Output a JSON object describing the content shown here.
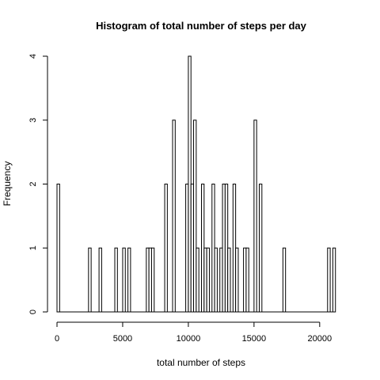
{
  "chart_data": {
    "type": "bar",
    "title": "Histogram of total number of steps per day",
    "xlabel": "total number of steps",
    "ylabel": "Frequency",
    "xlim": [
      0,
      22000
    ],
    "ylim": [
      0,
      4
    ],
    "xticks": [
      0,
      5000,
      10000,
      15000,
      20000
    ],
    "yticks": [
      0,
      1,
      2,
      3,
      4
    ],
    "bin_width": 200,
    "bins": [
      {
        "x": 0,
        "count": 2
      },
      {
        "x": 2400,
        "count": 1
      },
      {
        "x": 3200,
        "count": 1
      },
      {
        "x": 4400,
        "count": 1
      },
      {
        "x": 5000,
        "count": 1
      },
      {
        "x": 5400,
        "count": 1
      },
      {
        "x": 6800,
        "count": 1
      },
      {
        "x": 7000,
        "count": 1
      },
      {
        "x": 7200,
        "count": 1
      },
      {
        "x": 8200,
        "count": 2
      },
      {
        "x": 8800,
        "count": 3
      },
      {
        "x": 9800,
        "count": 2
      },
      {
        "x": 10000,
        "count": 4
      },
      {
        "x": 10200,
        "count": 2
      },
      {
        "x": 10400,
        "count": 3
      },
      {
        "x": 10600,
        "count": 1
      },
      {
        "x": 11000,
        "count": 2
      },
      {
        "x": 11200,
        "count": 1
      },
      {
        "x": 11400,
        "count": 1
      },
      {
        "x": 11800,
        "count": 2
      },
      {
        "x": 12000,
        "count": 1
      },
      {
        "x": 12400,
        "count": 1
      },
      {
        "x": 12600,
        "count": 2
      },
      {
        "x": 12800,
        "count": 2
      },
      {
        "x": 13000,
        "count": 1
      },
      {
        "x": 13400,
        "count": 2
      },
      {
        "x": 13600,
        "count": 1
      },
      {
        "x": 14200,
        "count": 1
      },
      {
        "x": 14400,
        "count": 1
      },
      {
        "x": 15000,
        "count": 3
      },
      {
        "x": 15400,
        "count": 2
      },
      {
        "x": 17200,
        "count": 1
      },
      {
        "x": 20600,
        "count": 1
      },
      {
        "x": 21000,
        "count": 1
      }
    ]
  }
}
